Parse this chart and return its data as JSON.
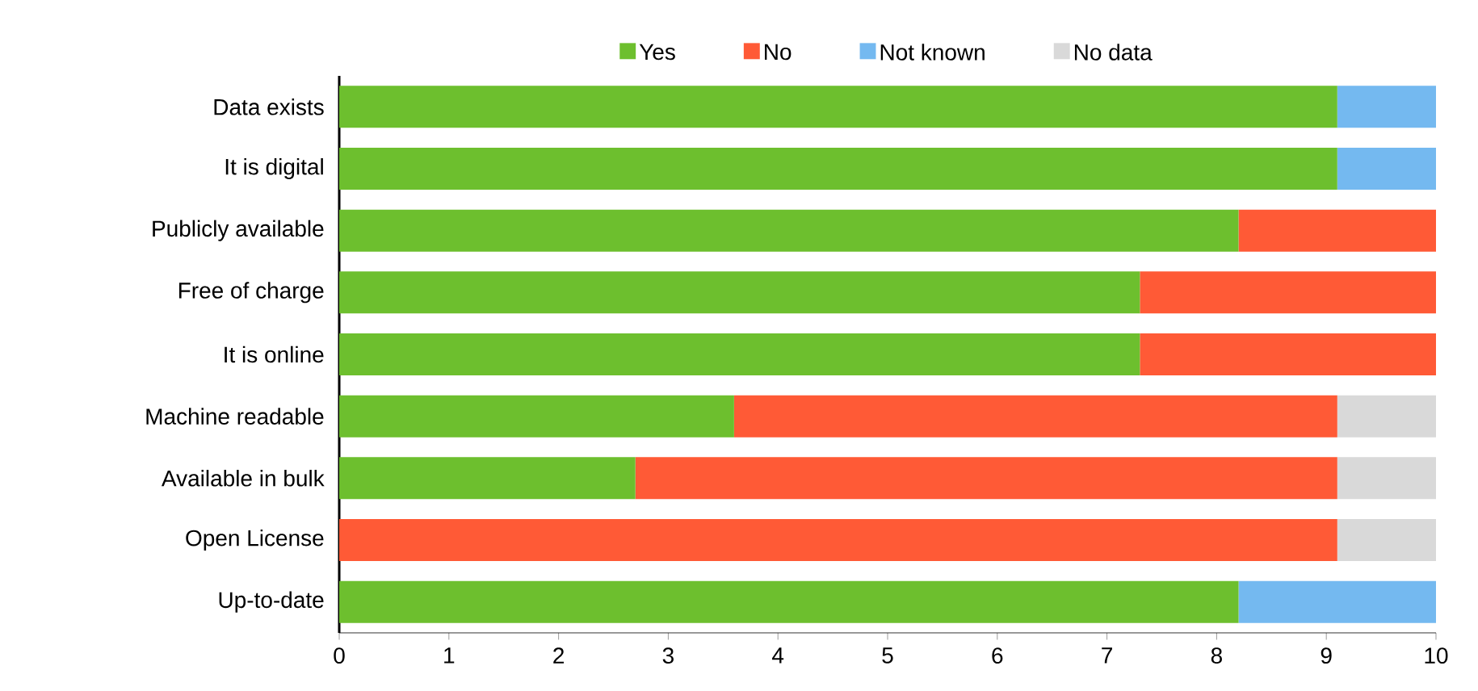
{
  "chart_data": {
    "type": "bar",
    "orientation": "horizontal",
    "stacked": true,
    "legend": "top",
    "grid": false,
    "categories": [
      "Data exists",
      "It is digital",
      "Publicly available",
      "Free of charge",
      "It is online",
      "Machine readable",
      "Available in bulk",
      "Open License",
      "Up-to-date"
    ],
    "series": [
      {
        "name": "Yes",
        "color": "#6dbf2e",
        "values": [
          9.1,
          9.1,
          8.2,
          7.3,
          7.3,
          3.6,
          2.7,
          0,
          8.2
        ]
      },
      {
        "name": "No",
        "color": "#ff5a36",
        "values": [
          0,
          0,
          1.8,
          2.7,
          2.7,
          5.5,
          6.4,
          9.1,
          0
        ]
      },
      {
        "name": "Not known",
        "color": "#74b9f0",
        "values": [
          0.9,
          0.9,
          0,
          0,
          0,
          0,
          0,
          0,
          1.8
        ]
      },
      {
        "name": "No data",
        "color": "#d9d9d9",
        "values": [
          0,
          0,
          0,
          0,
          0,
          0.9,
          0.9,
          0.9,
          0
        ]
      }
    ],
    "xlim": [
      0,
      10
    ],
    "xticks": [
      0,
      1,
      2,
      3,
      4,
      5,
      6,
      7,
      8,
      9,
      10
    ]
  }
}
